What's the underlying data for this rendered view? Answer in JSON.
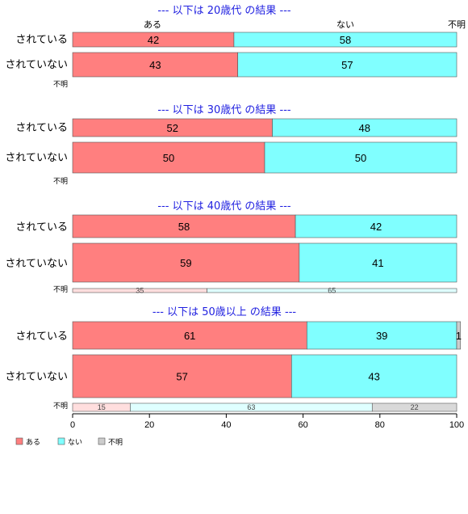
{
  "chart_data": {
    "type": "bar",
    "orientation": "horizontal-stacked-percent",
    "xlim": [
      0,
      100
    ],
    "x_ticks": [
      "0",
      "20",
      "40",
      "60",
      "80",
      "100"
    ],
    "column_headers": [
      "ある",
      "ない",
      "不明"
    ],
    "legend": {
      "placement": "bottom-left",
      "entries": [
        {
          "label": "ある",
          "color": "#ff7f7f"
        },
        {
          "label": "ない",
          "color": "#80ffff"
        },
        {
          "label": "不明",
          "color": "#cccccc"
        }
      ]
    },
    "panels": [
      {
        "title": "--- 以下は 20歳代 の結果 ---",
        "rows": [
          {
            "label": "されている",
            "values": [
              42,
              58,
              0
            ],
            "texts": [
              "42",
              "58",
              ""
            ]
          },
          {
            "label": "されていない",
            "values": [
              43,
              57,
              0
            ],
            "texts": [
              "43",
              "57",
              ""
            ]
          },
          {
            "label": "不明",
            "values": [
              0,
              0,
              0
            ],
            "texts": [
              "",
              "",
              ""
            ],
            "small": true
          }
        ]
      },
      {
        "title": "--- 以下は 30歳代 の結果 ---",
        "rows": [
          {
            "label": "されている",
            "values": [
              52,
              48,
              0
            ],
            "texts": [
              "52",
              "48",
              ""
            ]
          },
          {
            "label": "されていない",
            "values": [
              50,
              50,
              0
            ],
            "texts": [
              "50",
              "50",
              ""
            ]
          },
          {
            "label": "不明",
            "values": [
              0,
              0,
              0
            ],
            "texts": [
              "",
              "",
              ""
            ],
            "small": true
          }
        ]
      },
      {
        "title": "--- 以下は 40歳代 の結果 ---",
        "rows": [
          {
            "label": "されている",
            "values": [
              58,
              42,
              0
            ],
            "texts": [
              "58",
              "42",
              ""
            ]
          },
          {
            "label": "されていない",
            "values": [
              59,
              41,
              0
            ],
            "texts": [
              "59",
              "41",
              ""
            ]
          },
          {
            "label": "不明",
            "values": [
              35,
              65,
              0
            ],
            "texts": [
              "35",
              "65",
              ""
            ],
            "small": true
          }
        ]
      },
      {
        "title": "--- 以下は 50歳以上 の結果 ---",
        "rows": [
          {
            "label": "されている",
            "values": [
              61,
              39,
              1
            ],
            "texts": [
              "61",
              "39",
              "1"
            ]
          },
          {
            "label": "されていない",
            "values": [
              57,
              43,
              0
            ],
            "texts": [
              "57",
              "43",
              ""
            ]
          },
          {
            "label": "不明",
            "values": [
              15,
              63,
              22
            ],
            "texts": [
              "15",
              "63",
              "22"
            ],
            "small": true
          }
        ]
      }
    ]
  }
}
